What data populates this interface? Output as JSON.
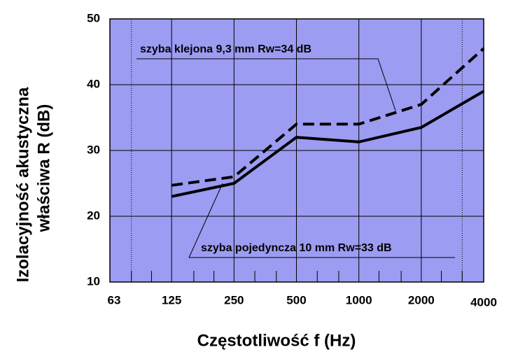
{
  "chart_data": {
    "type": "line",
    "x_label": "Częstotliwość  f  (Hz)",
    "y_label": [
      "Izolacyjność akustyczna",
      "właściwa  R  (dB)"
    ],
    "x": [
      125,
      250,
      500,
      1000,
      2000,
      4000
    ],
    "series": [
      {
        "name": "szyba pojedyncza 10 mm  Rw=33 dB",
        "color": "#000000",
        "dash": false,
        "values": [
          23,
          25,
          32,
          31.3,
          33.5,
          39
        ]
      },
      {
        "name": "szyba klejona 9,3 mm  Rw=34 dB",
        "color": "#000000",
        "dash": true,
        "values": [
          24.7,
          26,
          34,
          34,
          37,
          45.5
        ]
      }
    ],
    "xlog": true,
    "xlim": [
      63,
      4000
    ],
    "xticks": [
      63,
      125,
      250,
      500,
      1000,
      2000,
      4000
    ],
    "xminorticks": [
      80,
      100,
      160,
      200,
      315,
      400,
      630,
      800,
      1250,
      1600,
      2500,
      3150
    ],
    "dotted_lines": [
      80,
      3150
    ],
    "ylim": [
      10,
      50
    ],
    "yticks": [
      10,
      20,
      30,
      40,
      50
    ],
    "grid": true,
    "background": "#9c9cf2"
  }
}
